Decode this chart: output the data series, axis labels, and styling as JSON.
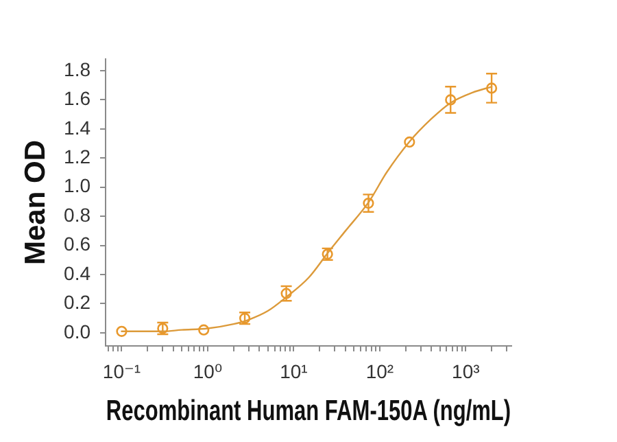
{
  "chart_data": {
    "type": "scatter",
    "xlabel": "Recombinant Human FAM-150A (ng/mL)",
    "ylabel": "Mean OD",
    "log": "x",
    "xlim": [
      0.065,
      3400
    ],
    "xticks": [
      {
        "value": 0.07,
        "label": null
      },
      {
        "value": 0.08,
        "label": null
      },
      {
        "value": 0.09,
        "label": null
      },
      {
        "value": 0.1,
        "label": "10⁻¹"
      },
      {
        "value": 0.2,
        "label": null
      },
      {
        "value": 0.3,
        "label": null
      },
      {
        "value": 0.4,
        "label": null
      },
      {
        "value": 0.5,
        "label": null
      },
      {
        "value": 0.6,
        "label": null
      },
      {
        "value": 0.7,
        "label": null
      },
      {
        "value": 0.8,
        "label": null
      },
      {
        "value": 0.9,
        "label": null
      },
      {
        "value": 1,
        "label": "10⁰"
      },
      {
        "value": 2,
        "label": null
      },
      {
        "value": 3,
        "label": null
      },
      {
        "value": 4,
        "label": null
      },
      {
        "value": 5,
        "label": null
      },
      {
        "value": 6,
        "label": null
      },
      {
        "value": 7,
        "label": null
      },
      {
        "value": 8,
        "label": null
      },
      {
        "value": 9,
        "label": null
      },
      {
        "value": 10,
        "label": "10¹"
      },
      {
        "value": 20,
        "label": null
      },
      {
        "value": 30,
        "label": null
      },
      {
        "value": 40,
        "label": null
      },
      {
        "value": 50,
        "label": null
      },
      {
        "value": 60,
        "label": null
      },
      {
        "value": 70,
        "label": null
      },
      {
        "value": 80,
        "label": null
      },
      {
        "value": 90,
        "label": null
      },
      {
        "value": 100,
        "label": "10²"
      },
      {
        "value": 200,
        "label": null
      },
      {
        "value": 300,
        "label": null
      },
      {
        "value": 400,
        "label": null
      },
      {
        "value": 500,
        "label": null
      },
      {
        "value": 600,
        "label": null
      },
      {
        "value": 700,
        "label": null
      },
      {
        "value": 800,
        "label": null
      },
      {
        "value": 900,
        "label": null
      },
      {
        "value": 1000,
        "label": "10³"
      },
      {
        "value": 2000,
        "label": null
      },
      {
        "value": 3000,
        "label": null
      }
    ],
    "ylim": [
      -0.09,
      1.88
    ],
    "yticks": [
      {
        "value": 0,
        "label": "0.0"
      },
      0.2,
      0.4,
      0.6,
      0.8,
      {
        "value": 1,
        "label": "1.0"
      },
      1.2,
      1.4,
      1.6,
      1.8
    ],
    "marker": "circle",
    "series": [
      {
        "color": "#e8982c",
        "x": [
          0.1,
          0.3,
          0.9,
          2.7,
          8.2,
          24.7,
          74,
          222,
          667,
          2000
        ],
        "values": [
          0.01,
          0.03,
          0.02,
          0.1,
          0.27,
          0.54,
          0.89,
          1.31,
          1.6,
          1.68
        ],
        "errors": [
          null,
          0.04,
          null,
          0.04,
          0.05,
          0.04,
          0.06,
          null,
          0.09,
          0.1
        ]
      },
      {
        "type": "line",
        "color": "#dc9a3a",
        "marker": "none",
        "x": [
          0.1,
          0.3,
          0.5,
          1,
          2,
          3,
          5,
          8,
          15,
          25,
          40,
          75,
          120,
          220,
          400,
          670,
          1200,
          2000
        ],
        "values": [
          0.01,
          0.01,
          0.02,
          0.03,
          0.06,
          0.09,
          0.15,
          0.24,
          0.38,
          0.55,
          0.7,
          0.9,
          1.1,
          1.31,
          1.47,
          1.58,
          1.65,
          1.69
        ]
      }
    ]
  }
}
